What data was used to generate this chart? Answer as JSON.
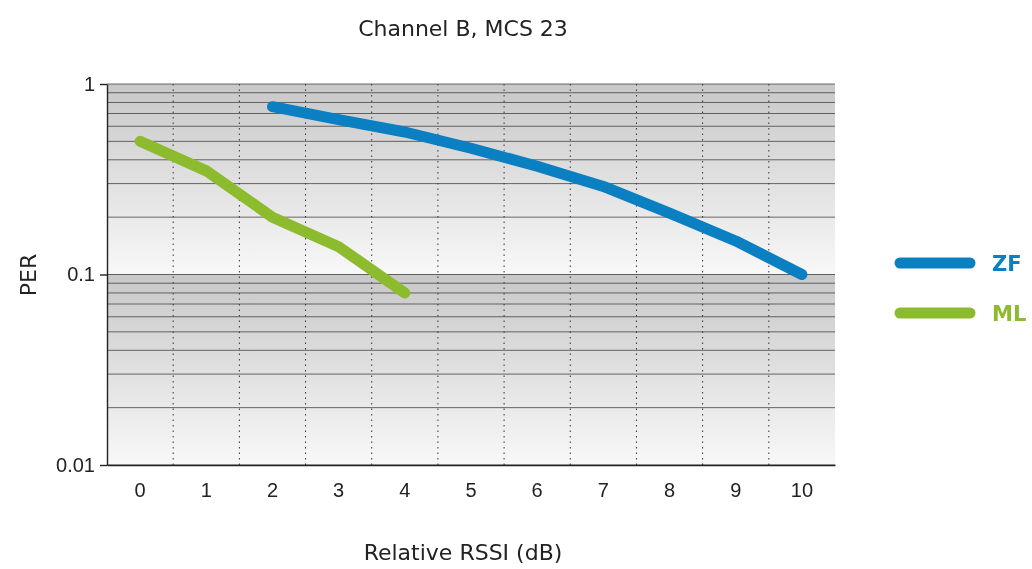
{
  "chart_data": {
    "type": "line",
    "title": "Channel B, MCS 23",
    "xlabel": "Relative RSSI (dB)",
    "ylabel": "PER",
    "categories": [
      "0",
      "1",
      "2",
      "3",
      "4",
      "5",
      "6",
      "7",
      "8",
      "9",
      "10"
    ],
    "series": [
      {
        "name": "ZF",
        "color": "#0a7fc1",
        "values": [
          null,
          null,
          0.76,
          0.65,
          0.56,
          0.46,
          0.37,
          0.29,
          0.21,
          0.15,
          0.1
        ]
      },
      {
        "name": "ML",
        "color": "#8dbb2e",
        "values": [
          0.5,
          0.35,
          0.2,
          0.14,
          0.08,
          null,
          null,
          null,
          null,
          null,
          null
        ]
      }
    ],
    "log": "y",
    "ylim": [
      0.01,
      1
    ],
    "yticks": [
      0.01,
      {
        "value": 0.02,
        "label": null
      },
      {
        "value": 0.03,
        "label": null
      },
      {
        "value": 0.04,
        "label": null
      },
      {
        "value": 0.05,
        "label": null
      },
      {
        "value": 0.06,
        "label": null
      },
      {
        "value": 0.07,
        "label": null
      },
      {
        "value": 0.08,
        "label": null
      },
      {
        "value": 0.09,
        "label": null
      },
      0.1,
      {
        "value": 0.2,
        "label": null
      },
      {
        "value": 0.3,
        "label": null
      },
      {
        "value": 0.4,
        "label": null
      },
      {
        "value": 0.5,
        "label": null
      },
      {
        "value": 0.6,
        "label": null
      },
      {
        "value": 0.7,
        "label": null
      },
      {
        "value": 0.8,
        "label": null
      },
      {
        "value": 0.9,
        "label": null
      },
      1
    ],
    "grid": true,
    "legend": "right",
    "marker": "none",
    "line_style": "solid"
  }
}
